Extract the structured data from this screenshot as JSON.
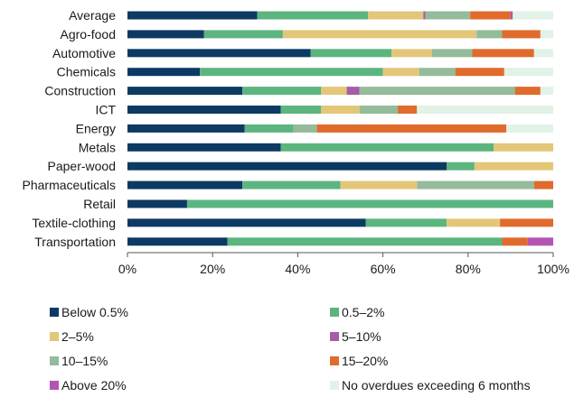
{
  "chart_data": {
    "type": "bar",
    "orientation": "horizontal",
    "stacked": true,
    "categories": [
      "Average",
      "Agro-food",
      "Automotive",
      "Chemicals",
      "Construction",
      "ICT",
      "Energy",
      "Metals",
      "Paper-wood",
      "Pharmaceuticals",
      "Retail",
      "Textile-clothing",
      "Transportation"
    ],
    "xlim": [
      0,
      100
    ],
    "xticks": [
      "0%",
      "20%",
      "40%",
      "60%",
      "80%",
      "100%"
    ],
    "grid": false,
    "legend_position": "bottom",
    "series": [
      {
        "name": "Below 0.5%",
        "color": "#0d3a63",
        "values": [
          30.5,
          18,
          43,
          17,
          27,
          36,
          27.5,
          36,
          75,
          27,
          14,
          56,
          23.5
        ]
      },
      {
        "name": "0.5–2%",
        "color": "#5cb57f",
        "values": [
          26,
          18.5,
          19,
          43,
          18.5,
          9.5,
          11.5,
          50,
          6.5,
          23,
          86,
          19,
          64.5
        ]
      },
      {
        "name": "2–5%",
        "color": "#e3c778",
        "values": [
          13,
          45.5,
          9.5,
          8.5,
          6,
          9,
          0,
          14,
          18.5,
          18,
          0,
          12.5,
          0
        ]
      },
      {
        "name": "5–10%",
        "color": "#a65ca8",
        "values": [
          0.5,
          0,
          0,
          0,
          3,
          0,
          0,
          0,
          0,
          0,
          0,
          0,
          0
        ]
      },
      {
        "name": "10–15%",
        "color": "#94bb9a",
        "values": [
          10.5,
          6,
          9.5,
          8.5,
          36.5,
          9,
          5.5,
          0,
          0,
          27.5,
          0,
          0,
          0
        ]
      },
      {
        "name": "15–20%",
        "color": "#e06b2c",
        "values": [
          9.5,
          9,
          14.5,
          11.5,
          6,
          4.5,
          44.5,
          0,
          0,
          4.5,
          0,
          12.5,
          6
        ]
      },
      {
        "name": "Above 20%",
        "color": "#b455b4",
        "values": [
          0.5,
          0,
          0,
          0,
          0,
          0,
          0,
          0,
          0,
          0,
          0,
          0,
          6
        ]
      },
      {
        "name": "No overdues exceeding 6 months",
        "color": "#e1f2e6",
        "values": [
          9.5,
          3,
          4.5,
          11.5,
          3,
          32,
          11,
          0,
          0,
          0,
          0,
          0,
          0
        ]
      }
    ]
  }
}
